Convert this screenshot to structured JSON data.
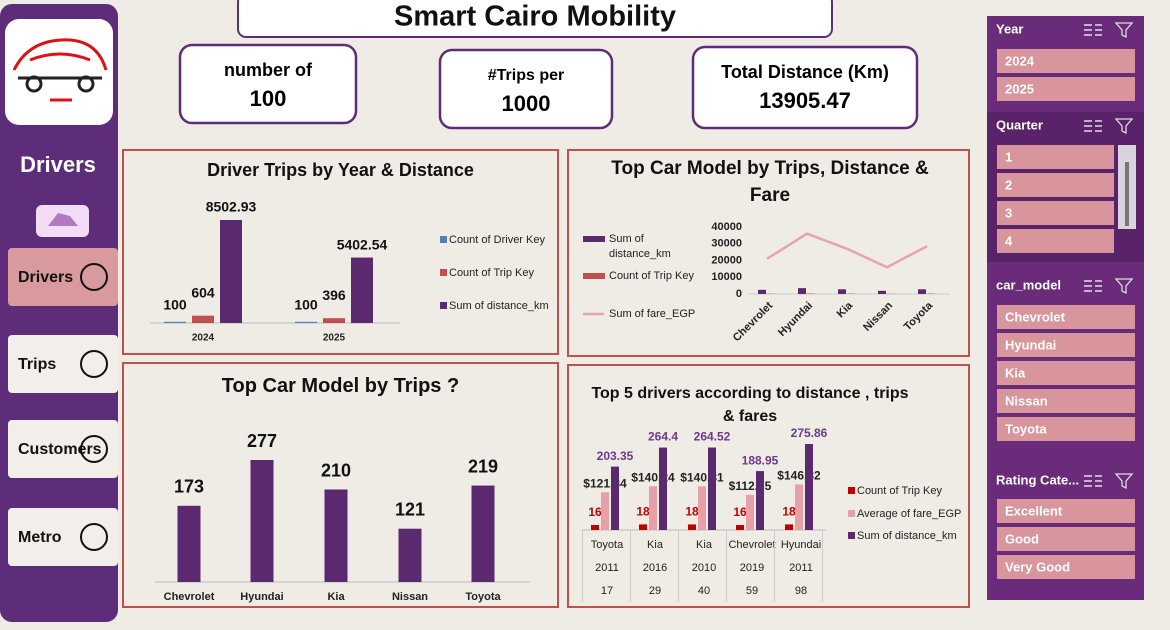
{
  "header": {
    "title": "Smart Cairo Mobility"
  },
  "kpis": [
    {
      "label": "number of",
      "value": 100
    },
    {
      "label": "#Trips per",
      "value": 1000
    },
    {
      "label": "Total Distance (Km)",
      "value": 13905.47
    }
  ],
  "sidebar": {
    "title": "Drivers",
    "nav": [
      "Drivers",
      "Trips",
      "Customers",
      "Metro"
    ]
  },
  "chart_data": [
    {
      "type": "bar",
      "title": "Driver Trips by Year & Distance",
      "categories": [
        "2024",
        "2025"
      ],
      "series": [
        {
          "name": "Count of Driver Key",
          "color": "#4f81bd",
          "values": [
            100,
            100
          ]
        },
        {
          "name": "Count of Trip Key",
          "color": "#c0504d",
          "values": [
            604,
            396
          ]
        },
        {
          "name": "Sum of distance_km",
          "color": "#5b2a6e",
          "values": [
            8502.93,
            5402.54
          ]
        }
      ]
    },
    {
      "type": "combo",
      "title": "Top Car Model by Trips, Distance & Fare",
      "categories": [
        "Chevrolet",
        "Hyundai",
        "Kia",
        "Nissan",
        "Toyota"
      ],
      "series": [
        {
          "name": "Sum of distance_km",
          "color": "#5b2a6e",
          "mark": "bar",
          "values": [
            2500,
            3500,
            2800,
            1900,
            2800
          ]
        },
        {
          "name": "Count of Trip Key",
          "color": "#c0504d",
          "mark": "bar",
          "values": [
            173,
            277,
            210,
            121,
            219
          ]
        },
        {
          "name": "Sum of fare_EGP",
          "color": "#e6a5a7",
          "mark": "line",
          "values": [
            21000,
            36000,
            27000,
            16000,
            28500
          ]
        }
      ],
      "ylim": [
        0,
        40000
      ],
      "yticks": [
        0,
        10000,
        20000,
        30000,
        40000
      ]
    },
    {
      "type": "bar",
      "title": "Top Car Model by Trips ?",
      "categories": [
        "Chevrolet",
        "Hyundai",
        "Kia",
        "Nissan",
        "Toyota"
      ],
      "values": [
        173,
        277,
        210,
        121,
        219
      ],
      "color": "#5b2a6e"
    },
    {
      "type": "bar",
      "title": "Top 5 drivers according to distance , trips & fares",
      "categories": [
        [
          "Toyota",
          "2011",
          "17"
        ],
        [
          "Kia",
          "2016",
          "29"
        ],
        [
          "Kia",
          "2010",
          "40"
        ],
        [
          "Chevrolet",
          "2019",
          "59"
        ],
        [
          "Hyundai",
          "2011",
          "98"
        ]
      ],
      "series": [
        {
          "name": "Count of Trip Key",
          "color": "#c00000",
          "values": [
            16,
            18,
            18,
            16,
            18
          ]
        },
        {
          "name": "Average of fare_EGP",
          "color": "#e6a1a8",
          "values": [
            121.34,
            140.24,
            140.31,
            112.75,
            146.32
          ],
          "value_labels": [
            "$121.34",
            "$140.24",
            "$140.31",
            "$112.75",
            "$146.32"
          ]
        },
        {
          "name": "Sum of distance_km",
          "color": "#5b2a6e",
          "values": [
            203.35,
            264.4,
            264.52,
            188.95,
            275.86
          ]
        }
      ]
    }
  ],
  "slicers": [
    {
      "title": "Year",
      "items": [
        "2024",
        "2025"
      ]
    },
    {
      "title": "Quarter",
      "items": [
        "1",
        "2",
        "3",
        "4"
      ]
    },
    {
      "title": "car_model",
      "items": [
        "Chevrolet",
        "Hyundai",
        "Kia",
        "Nissan",
        "Toyota"
      ]
    },
    {
      "title": "Rating Cate...",
      "items": [
        "Excellent",
        "Good",
        "Very Good"
      ]
    }
  ]
}
